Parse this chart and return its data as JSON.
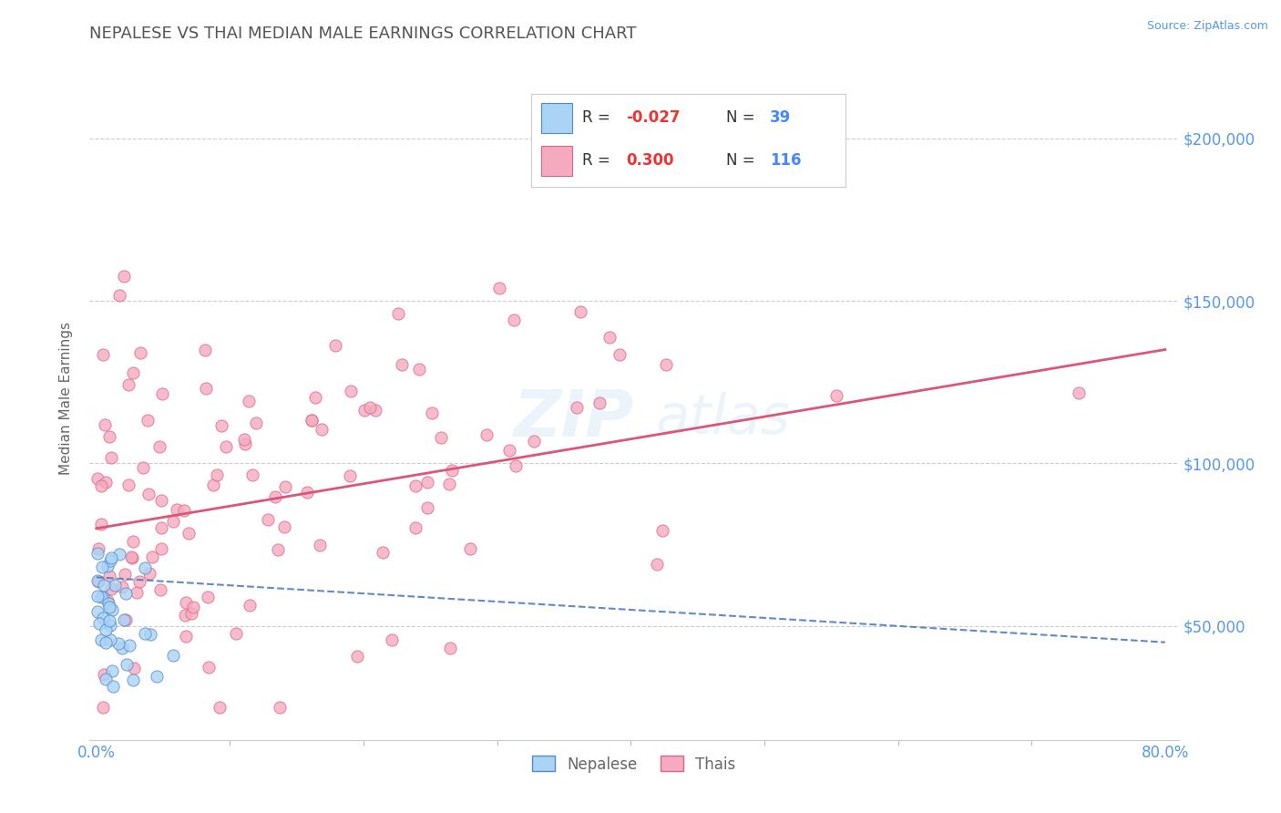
{
  "title": "NEPALESE VS THAI MEDIAN MALE EARNINGS CORRELATION CHART",
  "source": "Source: ZipAtlas.com",
  "ylabel": "Median Male Earnings",
  "ylabel_right_ticks": [
    50000,
    100000,
    150000,
    200000
  ],
  "ylabel_right_labels": [
    "$50,000",
    "$100,000",
    "$150,000",
    "$200,000"
  ],
  "xlim": [
    -0.005,
    0.81
  ],
  "ylim": [
    15000,
    225000
  ],
  "xtick_vals": [
    0.0,
    0.8
  ],
  "xtick_labels": [
    "0.0%",
    "80.0%"
  ],
  "background_color": "#ffffff",
  "grid_color": "#c8c8c8",
  "title_color": "#555555",
  "axis_label_color": "#666666",
  "tick_color": "#5599ee",
  "nepalese_color": "#aad4f5",
  "nepalese_edge": "#5588cc",
  "thais_color": "#f5aac0",
  "thais_edge": "#dd6688",
  "nepalese_line_color": "#4477bb",
  "thais_line_color": "#dd5577",
  "watermark_color": "#c8dff5",
  "watermark_alpha": 0.35,
  "thai_line_y0": 80000,
  "thai_line_y1": 135000,
  "nep_line_y0": 65000,
  "nep_line_y1": 45000,
  "legend_nepalese_color": "#aad4f5",
  "legend_nepalese_edge": "#5588cc",
  "legend_thais_color": "#f5aac0",
  "legend_thais_edge": "#dd6688",
  "legend_r1_val": "-0.027",
  "legend_n1_val": "39",
  "legend_r2_val": "0.300",
  "legend_n2_val": "116"
}
